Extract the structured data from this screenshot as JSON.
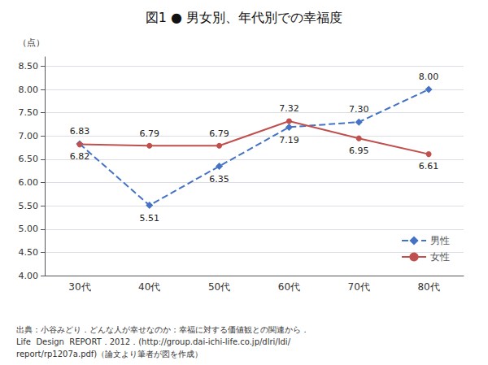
{
  "chart_data": {
    "type": "line",
    "title": "図1 ● 男女別、年代別での幸福度",
    "ylabel": "（点）",
    "categories": [
      "30代",
      "40代",
      "50代",
      "60代",
      "70代",
      "80代"
    ],
    "series": [
      {
        "name": "男性",
        "color": "#4472C4",
        "marker": "diamond",
        "line_style": "dashed",
        "values": [
          6.83,
          5.51,
          6.35,
          7.19,
          7.3,
          8.0
        ],
        "value_labels": [
          "6.83",
          "5.51",
          "6.35",
          "7.19",
          "7.30",
          "8.00"
        ]
      },
      {
        "name": "女性",
        "color": "#C0504D",
        "marker": "circle",
        "line_style": "solid",
        "values": [
          6.82,
          6.79,
          6.79,
          7.32,
          6.95,
          6.61
        ],
        "value_labels": [
          "6.82",
          "6.79",
          "6.79",
          "7.32",
          "6.95",
          "6.61"
        ]
      }
    ],
    "ylim": [
      4.0,
      8.7
    ],
    "yticks": [
      {
        "value": 4.0,
        "label": "4.00"
      },
      {
        "value": 4.5,
        "label": "4.50"
      },
      {
        "value": 5.0,
        "label": "5.00"
      },
      {
        "value": 5.5,
        "label": "5.50"
      },
      {
        "value": 6.0,
        "label": "6.00"
      },
      {
        "value": 6.5,
        "label": "6.50"
      },
      {
        "value": 7.0,
        "label": "7.00"
      },
      {
        "value": 7.5,
        "label": "7.50"
      },
      {
        "value": 8.0,
        "label": "8.00"
      },
      {
        "value": 8.5,
        "label": "8.50"
      }
    ],
    "grid": true,
    "legend": "lower right",
    "data_labels": true,
    "footnote": [
      "出典：小谷みどり．どんな人が幸せなのか：幸福に対する価値観との関連から．",
      "Life  Design  REPORT．2012．(http://group.dai-ichi-life.co.jp/dlri/ldi/",
      "report/rp1207a.pdf)（論文より筆者が図を作成）"
    ]
  }
}
